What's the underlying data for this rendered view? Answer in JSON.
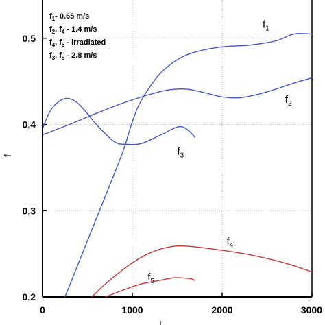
{
  "chart_data": {
    "type": "line",
    "title": "",
    "xlabel": "",
    "ylabel": "f",
    "xlim": [
      0,
      3000
    ],
    "ylim": [
      0.2,
      0.6
    ],
    "x_ticks": [
      "0",
      "1000",
      "2000",
      "3000"
    ],
    "y_ticks": [
      "0,2",
      "0,3",
      "0,4",
      "0,5"
    ],
    "grid": true,
    "legend_lines": [
      {
        "main": "f",
        "sub": "1",
        "rest": "- 0.65 m/s"
      },
      {
        "main": "f",
        "sub": "2",
        "mid": ", f",
        "sub2": "4",
        "rest": " -  1.4 m/s"
      },
      {
        "main": "f",
        "sub": "4",
        "mid": ", f",
        "sub2": "5",
        "rest": " -  irradiated"
      },
      {
        "main": "f",
        "sub": "3",
        "mid": ", f",
        "sub2": "5",
        "rest": " - 2.8 m/s"
      }
    ],
    "series": [
      {
        "name": "f1",
        "color": "#4455cc",
        "x": [
          250,
          500,
          750,
          900,
          1000,
          1100,
          1300,
          1500,
          1700,
          2000,
          2300,
          2600,
          2800,
          3000
        ],
        "y": [
          0.2,
          0.265,
          0.33,
          0.37,
          0.403,
          0.428,
          0.458,
          0.475,
          0.484,
          0.49,
          0.492,
          0.497,
          0.505,
          0.505
        ]
      },
      {
        "name": "f2",
        "color": "#4455cc",
        "x": [
          0,
          300,
          600,
          900,
          1200,
          1400,
          1600,
          1800,
          2000,
          2200,
          2400,
          2600,
          2800,
          3000
        ],
        "y": [
          0.388,
          0.4,
          0.413,
          0.425,
          0.435,
          0.44,
          0.441,
          0.437,
          0.432,
          0.431,
          0.435,
          0.441,
          0.448,
          0.454
        ]
      },
      {
        "name": "f3",
        "color": "#4455cc",
        "x": [
          0,
          100,
          250,
          400,
          600,
          800,
          950,
          1100,
          1300,
          1500,
          1600,
          1700
        ],
        "y": [
          0.395,
          0.418,
          0.43,
          0.424,
          0.4,
          0.38,
          0.377,
          0.378,
          0.387,
          0.397,
          0.395,
          0.385
        ]
      },
      {
        "name": "f4",
        "color": "#cc3333",
        "x": [
          550,
          700,
          900,
          1100,
          1300,
          1500,
          1700,
          2000,
          2300,
          2600,
          2800,
          3000
        ],
        "y": [
          0.2,
          0.215,
          0.232,
          0.246,
          0.255,
          0.259,
          0.258,
          0.254,
          0.249,
          0.242,
          0.236,
          0.229
        ]
      },
      {
        "name": "f5",
        "color": "#cc3333",
        "x": [
          700,
          900,
          1100,
          1300,
          1450,
          1550,
          1650,
          1700
        ],
        "y": [
          0.2,
          0.208,
          0.215,
          0.219,
          0.222,
          0.222,
          0.221,
          0.219
        ]
      }
    ],
    "curve_labels": [
      {
        "main": "f",
        "sub": "1",
        "x": 2450,
        "y": 0.512
      },
      {
        "main": "f",
        "sub": "2",
        "x": 2700,
        "y": 0.425
      },
      {
        "main": "f",
        "sub": "3",
        "x": 1500,
        "y": 0.365
      },
      {
        "main": "f",
        "sub": "4",
        "x": 2050,
        "y": 0.261
      },
      {
        "main": "f",
        "sub": "5",
        "x": 1170,
        "y": 0.219
      }
    ]
  }
}
